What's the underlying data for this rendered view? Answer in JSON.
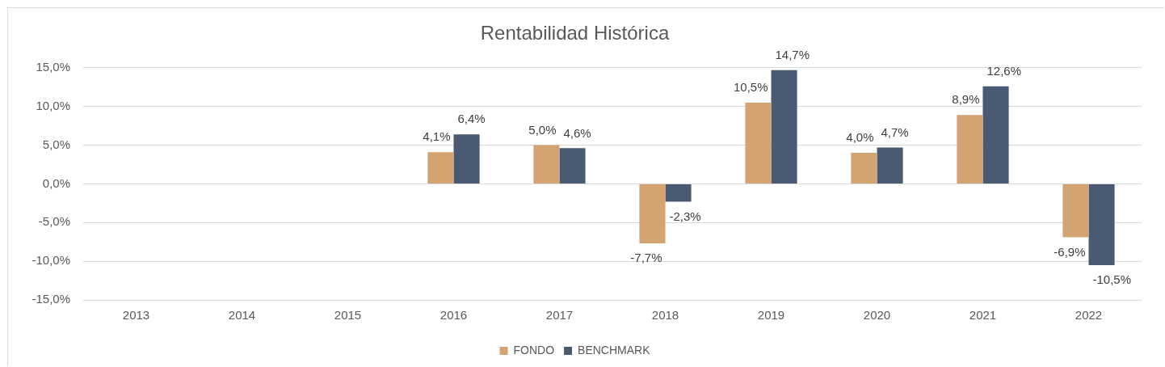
{
  "chart_data": {
    "type": "bar",
    "title": "Rentabilidad Histórica",
    "categories": [
      "2013",
      "2014",
      "2015",
      "2016",
      "2017",
      "2018",
      "2019",
      "2020",
      "2021",
      "2022"
    ],
    "series": [
      {
        "name": "FONDO",
        "color": "#d3a372",
        "values": [
          null,
          null,
          null,
          4.1,
          5.0,
          -7.7,
          10.5,
          4.0,
          8.9,
          -6.9
        ],
        "value_labels": [
          null,
          null,
          null,
          "4,1%",
          "5,0%",
          "-7,7%",
          "10,5%",
          "4,0%",
          "8,9%",
          "-6,9%"
        ]
      },
      {
        "name": "BENCHMARK",
        "color": "#4a5a73",
        "values": [
          null,
          null,
          null,
          6.4,
          4.6,
          -2.3,
          14.7,
          4.7,
          12.6,
          -10.5
        ],
        "value_labels": [
          null,
          null,
          null,
          "6,4%",
          "4,6%",
          "-2,3%",
          "14,7%",
          "4,7%",
          "12,6%",
          "-10,5%"
        ]
      }
    ],
    "ylim": [
      -15,
      15
    ],
    "yticks": [
      {
        "value": -15,
        "label": "-15,0%"
      },
      {
        "value": -10,
        "label": "-10,0%"
      },
      {
        "value": -5,
        "label": "-5,0%"
      },
      {
        "value": 0,
        "label": "0,0%"
      },
      {
        "value": 5,
        "label": "5,0%"
      },
      {
        "value": 10,
        "label": "10,0%"
      },
      {
        "value": 15,
        "label": "15,0%"
      }
    ],
    "grid": "y",
    "legend": "bottom"
  }
}
